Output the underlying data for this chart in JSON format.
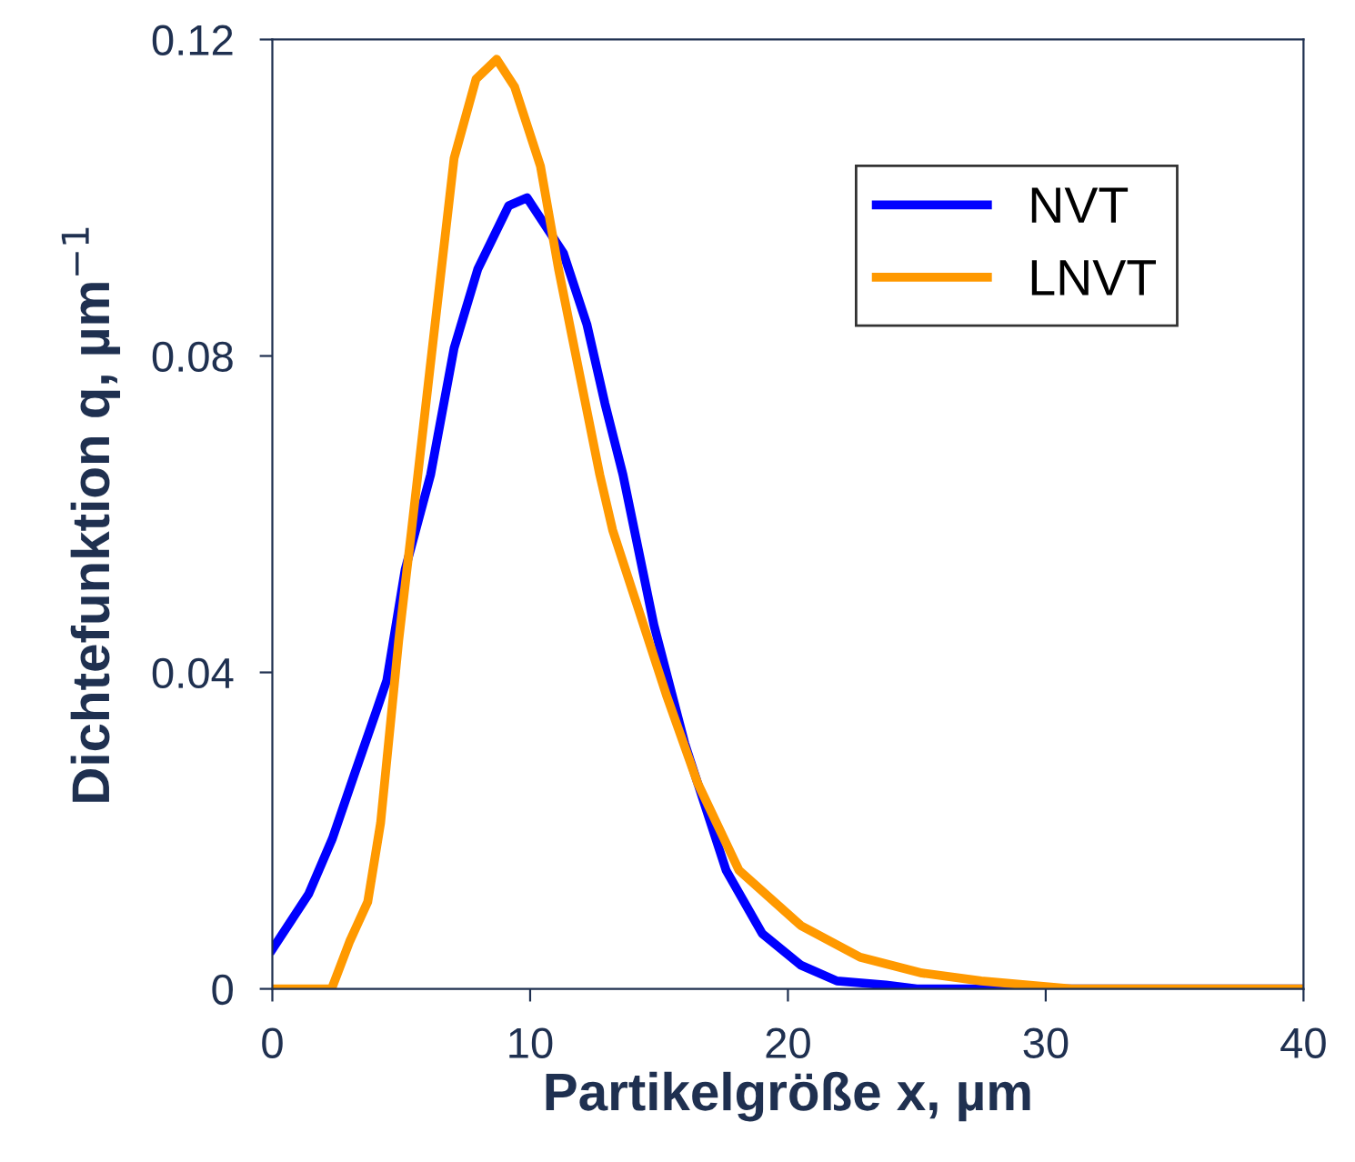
{
  "chart_data": {
    "type": "line",
    "xlabel": "Partikelgröße x, µm",
    "ylabel": "Dichtefunktion q, µm$^{−1}$",
    "xlim": [
      0,
      40
    ],
    "xticks": [
      0,
      10,
      20,
      30,
      40
    ],
    "ylim": [
      0,
      0.12
    ],
    "yticks": [
      0,
      0.04,
      0.08,
      0.12
    ],
    "grid": false,
    "legend": "top right",
    "marker": "none",
    "line_style": "solid",
    "series": [
      {
        "name": "NVT",
        "color": "#0000ff",
        "x": [
          0,
          1.41,
          2.33,
          3.17,
          4.02,
          4.44,
          5.15,
          6.14,
          7.05,
          7.97,
          9.17,
          9.88,
          11.29,
          12.2,
          12.9,
          13.6,
          14.8,
          16.0,
          17.6,
          19.0,
          20.5,
          21.9,
          23.8,
          25,
          40
        ],
        "values": [
          0.005,
          0.012,
          0.019,
          0.027,
          0.035,
          0.039,
          0.053,
          0.065,
          0.081,
          0.091,
          0.099,
          0.1,
          0.093,
          0.084,
          0.074,
          0.065,
          0.046,
          0.031,
          0.015,
          0.007,
          0.003,
          0.001,
          0.0005,
          0,
          0
        ]
      },
      {
        "name": "LNVT",
        "color": "#ff9900",
        "x": [
          0,
          2.3,
          3.0,
          3.7,
          4.2,
          4.9,
          5.4,
          6.1,
          7.05,
          7.9,
          8.7,
          9.4,
          10.4,
          11.1,
          11.9,
          12.7,
          13.2,
          14.1,
          15.3,
          16.5,
          18.1,
          20.5,
          22.8,
          25.2,
          27.5,
          31,
          40
        ],
        "values": [
          0,
          0,
          0.006,
          0.011,
          0.021,
          0.044,
          0.058,
          0.078,
          0.105,
          0.115,
          0.1175,
          0.114,
          0.104,
          0.091,
          0.078,
          0.065,
          0.058,
          0.049,
          0.037,
          0.026,
          0.015,
          0.008,
          0.004,
          0.002,
          0.001,
          0,
          0
        ]
      }
    ]
  }
}
